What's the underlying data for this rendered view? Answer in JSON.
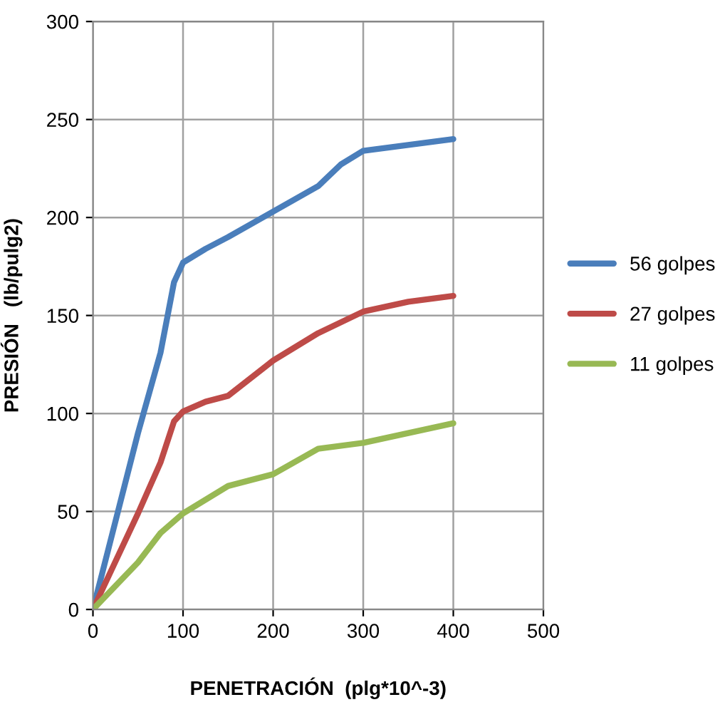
{
  "chart_data": {
    "type": "line",
    "xlabel": "PENETRACIÓN  (plg*10^-3)",
    "ylabel": "PRESIÓN   (lb/pulg2)",
    "xlim": [
      0,
      500
    ],
    "xticks": [
      0,
      100,
      200,
      300,
      400,
      500
    ],
    "ylim": [
      0,
      300
    ],
    "yticks": [
      0,
      50,
      100,
      150,
      200,
      250,
      300
    ],
    "grid": true,
    "legend": "right",
    "marker": "none",
    "line_style": "solid",
    "series": [
      {
        "name": "56 golpes",
        "color": "#4a7ebb",
        "x": [
          0,
          50,
          75,
          90,
          100,
          125,
          150,
          200,
          250,
          275,
          300,
          350,
          400
        ],
        "values": [
          0,
          90,
          131,
          167,
          177,
          184,
          190,
          203,
          216,
          227,
          234,
          237,
          240
        ]
      },
      {
        "name": "27 golpes",
        "color": "#be4b48",
        "x": [
          0,
          50,
          75,
          90,
          100,
          125,
          150,
          200,
          250,
          300,
          350,
          400
        ],
        "values": [
          0,
          49,
          75,
          96,
          101,
          106,
          109,
          127,
          141,
          152,
          157,
          160
        ]
      },
      {
        "name": "11 golpes",
        "color": "#98b954",
        "x": [
          0,
          50,
          75,
          100,
          150,
          200,
          250,
          300,
          350,
          400
        ],
        "values": [
          0,
          24,
          39,
          49,
          63,
          69,
          82,
          85,
          90,
          95
        ]
      }
    ]
  }
}
